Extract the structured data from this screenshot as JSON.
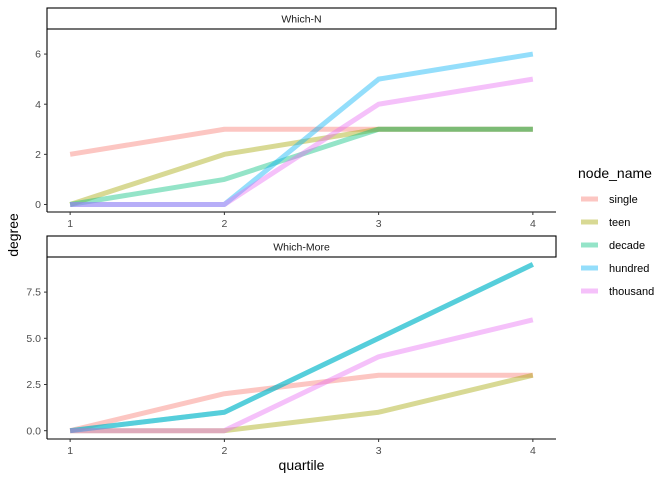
{
  "chart_data": {
    "type": "line",
    "xlabel": "quartile",
    "ylabel": "degree",
    "x": [
      1,
      2,
      3,
      4
    ],
    "grid": false,
    "legend": {
      "title": "node_name",
      "placement": "right",
      "entries": [
        "single",
        "teen",
        "decade",
        "hundred",
        "thousand"
      ]
    },
    "series_colors": {
      "single": "#F8766D",
      "teen": "#A3A500",
      "decade": "#00BF7D",
      "hundred": "#00B0F6",
      "thousand": "#E76BF3"
    },
    "panels": [
      {
        "strip": "Which-N",
        "ylim": [
          -0.3,
          7.0
        ],
        "yticks": [
          0,
          2,
          4,
          6
        ],
        "ytick_labels": [
          "0",
          "2",
          "4",
          "6"
        ],
        "series": [
          {
            "name": "single",
            "values": [
              2,
              3,
              3,
              3
            ]
          },
          {
            "name": "teen",
            "values": [
              0,
              2,
              3,
              3
            ]
          },
          {
            "name": "decade",
            "values": [
              0,
              1,
              3,
              3
            ]
          },
          {
            "name": "hundred",
            "values": [
              0,
              0,
              5,
              6
            ]
          },
          {
            "name": "thousand",
            "values": [
              0,
              0,
              4,
              5
            ]
          }
        ]
      },
      {
        "strip": "Which-More",
        "ylim": [
          -0.45,
          9.4
        ],
        "yticks": [
          0,
          2.5,
          5,
          7.5
        ],
        "ytick_labels": [
          "0.0",
          "2.5",
          "5.0",
          "7.5"
        ],
        "series": [
          {
            "name": "single",
            "values": [
              0,
              2,
              3,
              3
            ]
          },
          {
            "name": "teen",
            "values": [
              0,
              0,
              1,
              3
            ]
          },
          {
            "name": "decade",
            "values": [
              0,
              1,
              5,
              9
            ]
          },
          {
            "name": "hundred",
            "values": [
              0,
              1,
              5,
              9
            ]
          },
          {
            "name": "thousand",
            "values": [
              0,
              0,
              4,
              6
            ]
          }
        ]
      }
    ],
    "xtick_labels": [
      "1",
      "2",
      "3",
      "4"
    ]
  }
}
